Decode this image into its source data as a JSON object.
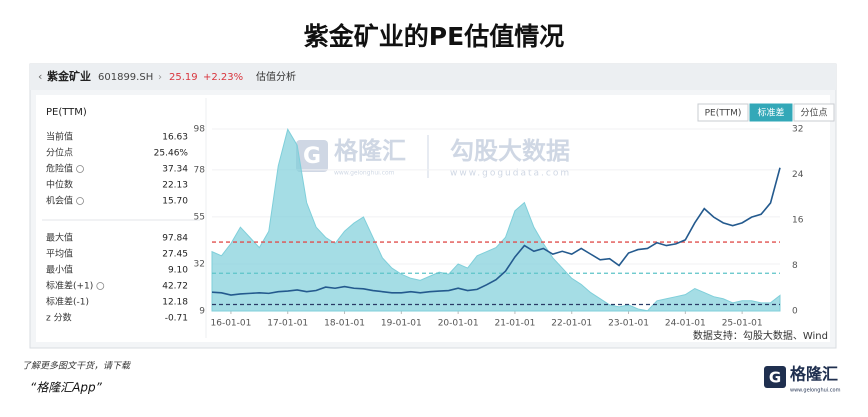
{
  "title": "紫金矿业的PE估值情况",
  "header": {
    "name": "紫金矿业",
    "code": "601899.SH",
    "price": "25.19",
    "change": "+2.23%",
    "tab": "估值分析"
  },
  "buttons": [
    {
      "label": "PE(TTM)",
      "active": false
    },
    {
      "label": "标准差",
      "active": true
    },
    {
      "label": "分位点",
      "active": false
    }
  ],
  "panel": {
    "title": "PE(TTM)",
    "groups": [
      [
        {
          "label": "当前值",
          "value": "16.63"
        },
        {
          "label": "分位点",
          "value": "25.46%"
        },
        {
          "label": "危险值",
          "value": "37.34",
          "info": true
        },
        {
          "label": "中位数",
          "value": "22.13"
        },
        {
          "label": "机会值",
          "value": "15.70",
          "info": true
        }
      ],
      [
        {
          "label": "最大值",
          "value": "97.84"
        },
        {
          "label": "平均值",
          "value": "27.45"
        },
        {
          "label": "最小值",
          "value": "9.10"
        },
        {
          "label": "标准差(+1)",
          "value": "42.72",
          "info": true
        },
        {
          "label": "标准差(-1)",
          "value": "12.18"
        },
        {
          "label": "z 分数",
          "value": "-0.71"
        }
      ]
    ]
  },
  "watermark": {
    "brand": "格隆汇",
    "brand_url": "www.gelonghui.com",
    "brand2": "勾股大数据",
    "brand2_url": "www.gogudata.com"
  },
  "source": "数据支持：勾股大数据、Wind",
  "footer": {
    "prompt": "了解更多图文干货，请下载",
    "app": "“格隆汇App”",
    "logo": "格隆汇",
    "logo_url": "www.gelonghui.com"
  },
  "chart_data": {
    "type": "combo",
    "x": [
      "15-09-01",
      "15-11-01",
      "16-01-01",
      "16-03-01",
      "16-05-01",
      "16-07-01",
      "16-09-01",
      "16-11-01",
      "17-01-01",
      "17-03-01",
      "17-05-01",
      "17-07-01",
      "17-09-01",
      "17-11-01",
      "18-01-01",
      "18-03-01",
      "18-05-01",
      "18-07-01",
      "18-09-01",
      "18-11-01",
      "19-01-01",
      "19-03-01",
      "19-05-01",
      "19-07-01",
      "19-09-01",
      "19-11-01",
      "20-01-01",
      "20-03-01",
      "20-05-01",
      "20-07-01",
      "20-09-01",
      "20-11-01",
      "21-01-01",
      "21-03-01",
      "21-05-01",
      "21-07-01",
      "21-09-01",
      "21-11-01",
      "22-01-01",
      "22-03-01",
      "22-05-01",
      "22-07-01",
      "22-09-01",
      "22-11-01",
      "23-01-01",
      "23-03-01",
      "23-05-01",
      "23-07-01",
      "23-09-01",
      "23-11-01",
      "24-01-01",
      "24-03-01",
      "24-05-01",
      "24-07-01",
      "24-09-01",
      "24-11-01",
      "25-01-01",
      "25-03-01",
      "25-05-01",
      "25-07-01",
      "25-09-01"
    ],
    "series": [
      {
        "kind": "area",
        "color": "#7fcfda",
        "values": [
          38,
          36,
          42,
          50,
          45,
          40,
          48,
          80,
          97.84,
          90,
          62,
          50,
          45,
          42,
          48,
          52,
          55,
          45,
          35,
          30,
          27,
          25,
          24,
          26,
          28,
          27,
          32,
          30,
          36,
          38,
          40,
          45,
          58,
          62,
          50,
          42,
          35,
          30,
          25,
          22,
          18,
          15,
          12,
          11,
          12,
          10,
          9.1,
          14,
          15,
          16,
          17,
          20,
          18,
          16,
          15,
          13,
          14,
          14,
          13,
          13,
          16.63
        ]
      },
      {
        "kind": "line",
        "axis": "y2",
        "color": "#245a8e",
        "values": [
          3.3,
          3.2,
          2.8,
          3.0,
          3.1,
          3.2,
          3.1,
          3.4,
          3.5,
          3.7,
          3.4,
          3.6,
          4.2,
          4.0,
          4.3,
          4.0,
          3.9,
          3.6,
          3.4,
          3.2,
          3.2,
          3.4,
          3.2,
          3.4,
          3.5,
          3.6,
          4.0,
          3.6,
          3.8,
          4.6,
          5.5,
          7.0,
          9.5,
          11.5,
          10.5,
          11.0,
          10.0,
          10.5,
          10.0,
          11.0,
          10.0,
          9.0,
          9.2,
          8.0,
          10.2,
          10.8,
          11.0,
          12.0,
          11.5,
          11.8,
          12.5,
          15.5,
          18.0,
          16.5,
          15.5,
          15.0,
          15.5,
          16.5,
          17.0,
          19.0,
          25.19
        ]
      }
    ],
    "ref_lines": [
      {
        "value": 42.72,
        "color": "#e0504f"
      },
      {
        "value": 27.45,
        "color": "#5cc4c8"
      },
      {
        "value": 12.18,
        "color": "#2a3b66"
      }
    ],
    "xlim": [
      "15-09-01",
      "25-09-01"
    ],
    "xticks": [
      "16-01-01",
      "17-01-01",
      "18-01-01",
      "19-01-01",
      "20-01-01",
      "21-01-01",
      "22-01-01",
      "23-01-01",
      "24-01-01",
      "25-01-01"
    ],
    "ylim": [
      9,
      98
    ],
    "yticks": [
      9,
      32,
      55,
      78,
      98
    ],
    "y2lim": [
      0,
      32
    ],
    "y2ticks": [
      0,
      8,
      16,
      24,
      32
    ],
    "grid": true
  }
}
